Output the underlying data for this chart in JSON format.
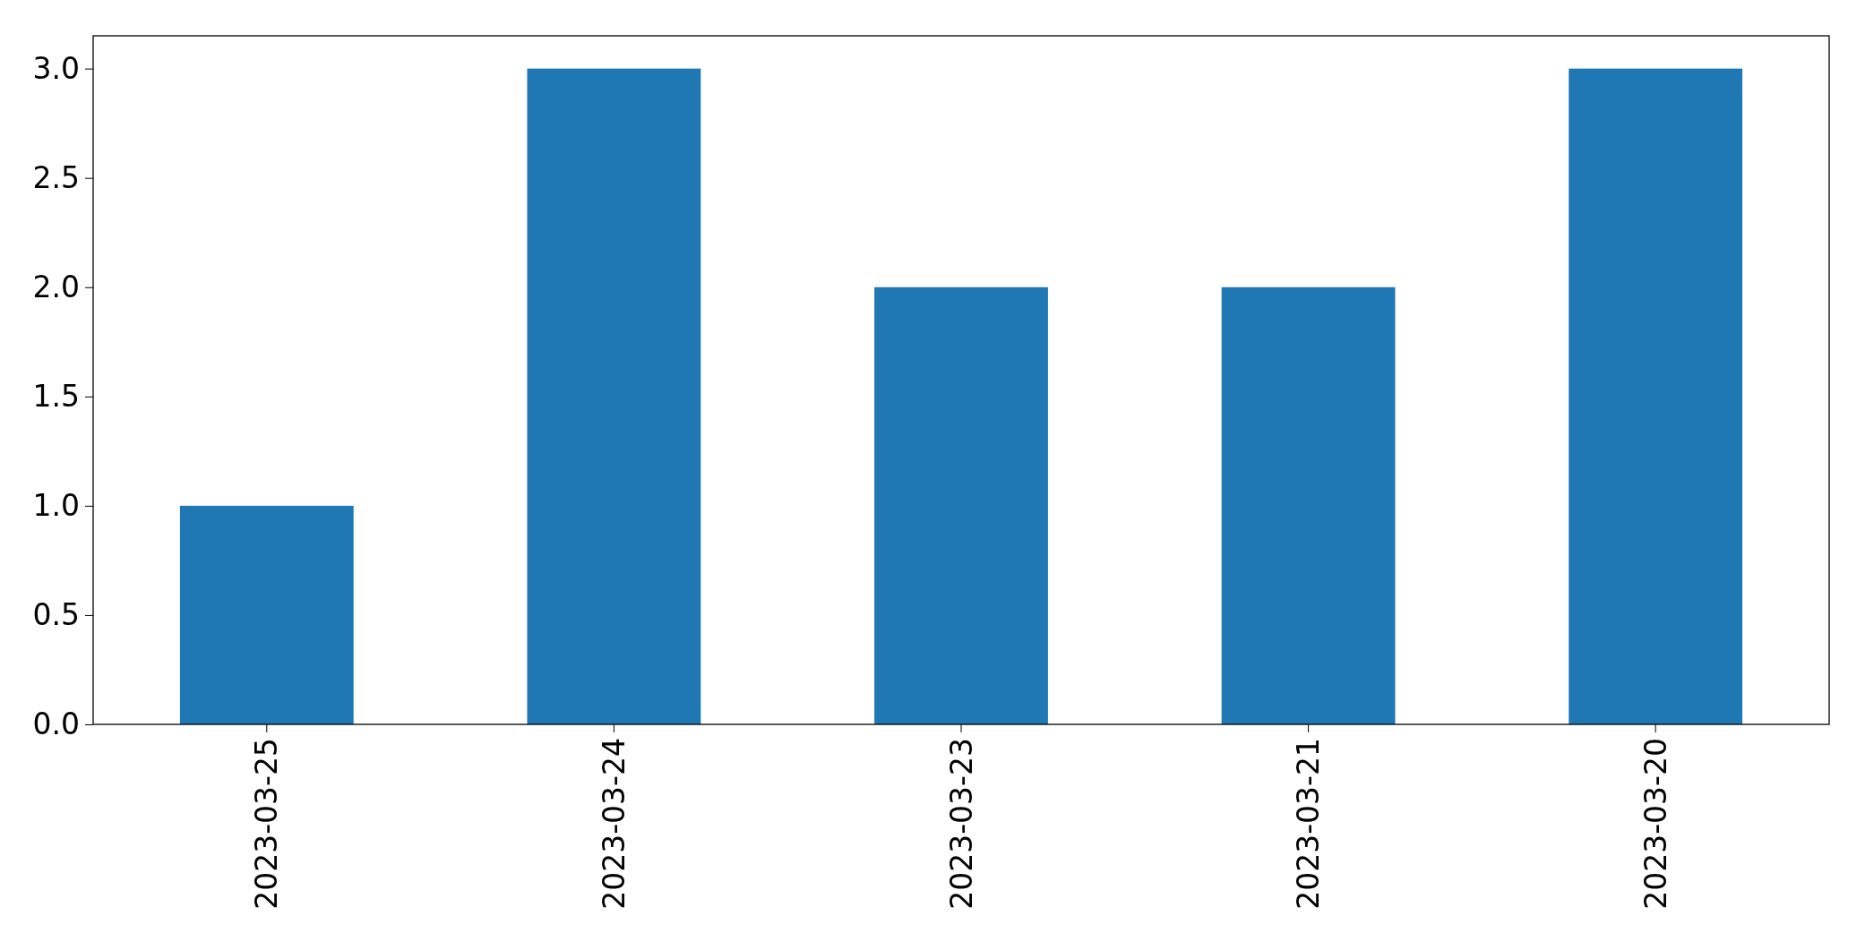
{
  "chart_data": {
    "type": "bar",
    "categories": [
      "2023-03-25",
      "2023-03-24",
      "2023-03-23",
      "2023-03-21",
      "2023-03-20"
    ],
    "values": [
      1,
      3,
      2,
      2,
      3
    ],
    "color": "#1f77b4",
    "ylim": [
      0,
      3.15
    ],
    "yticks": [
      {
        "value": 0,
        "label": "0.0"
      },
      {
        "value": 0.5,
        "label": "0.5"
      },
      {
        "value": 1,
        "label": "1.0"
      },
      {
        "value": 1.5,
        "label": "1.5"
      },
      {
        "value": 2,
        "label": "2.0"
      },
      {
        "value": 2.5,
        "label": "2.5"
      },
      {
        "value": 3,
        "label": "3.0"
      }
    ],
    "grid": false,
    "legend": false
  }
}
